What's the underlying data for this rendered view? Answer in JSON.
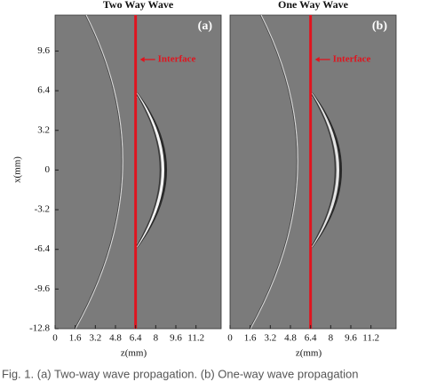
{
  "chart_data": [
    {
      "type": "image",
      "title": "Two Way Wave",
      "panel_label": "(a)",
      "annotation": "Interface",
      "xlabel": "z(mm)",
      "ylabel": "x(mm)",
      "xlim": [
        0,
        13.2
      ],
      "ylim": [
        -12.8,
        12.5
      ],
      "xticks": [
        0,
        1.6,
        3.2,
        4.8,
        6.4,
        8,
        9.6,
        11.2
      ],
      "yticks": [
        9.6,
        6.4,
        3.2,
        0,
        -3.2,
        -6.4,
        -9.6,
        -12.8
      ],
      "interface_z": 6.4,
      "interface_color": "#e0141e"
    },
    {
      "type": "image",
      "title": "One Way Wave",
      "panel_label": "(b)",
      "annotation": "Interface",
      "xlabel": "z(mm)",
      "xlim": [
        0,
        13.2
      ],
      "ylim": [
        -12.8,
        12.5
      ],
      "xticks": [
        0,
        1.6,
        3.2,
        4.8,
        6.4,
        8,
        9.6,
        11.2
      ],
      "interface_z": 6.4,
      "interface_color": "#e0141e"
    }
  ],
  "caption": "Fig. 1. (a) Two-way wave propagation. (b) One-way wave propagation"
}
